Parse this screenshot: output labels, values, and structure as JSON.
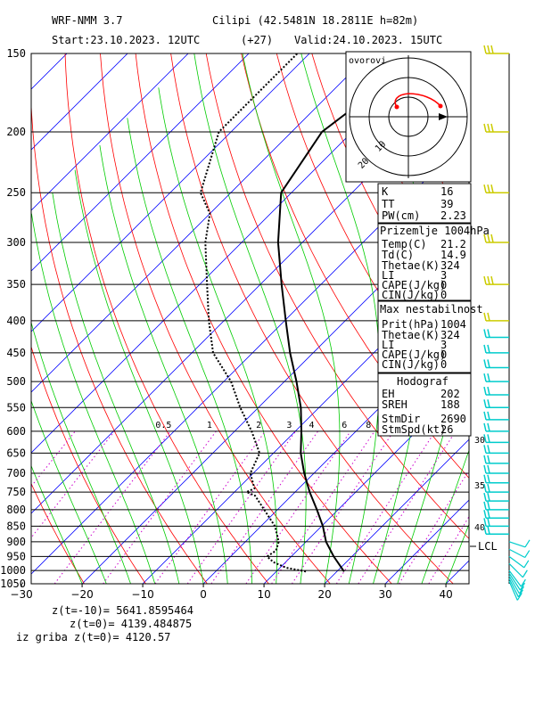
{
  "header": {
    "model": "WRF-NMM 3.7",
    "station": "Cilipi (42.5481N 18.2811E  h=82m)",
    "start": "Start:23.10.2023.   12UTC",
    "offset": "(+27)",
    "valid": "Valid:24.10.2023.   15UTC"
  },
  "colors": {
    "isotherm": "#0000ff",
    "dry_adiabat": "#ff0000",
    "moist_adiabat": "#00cc00",
    "mixing_ratio": "#cc00cc",
    "profile": "#000000",
    "wind_barb": "#cccc00",
    "wind_barb_low": "#00cccc",
    "hodo_curve": "#ff0000"
  },
  "hodograph": {
    "title": "ovorovi",
    "labels": [
      "10",
      "20"
    ]
  },
  "indices": {
    "rows": [
      {
        "k": "K",
        "v": "16"
      },
      {
        "k": "TT",
        "v": "39"
      },
      {
        "k": "PW(cm)",
        "v": "2.23"
      }
    ]
  },
  "surface": {
    "title": "Prizemlje 1004hPa",
    "rows": [
      {
        "k": "Temp(C)",
        "v": "21.2"
      },
      {
        "k": "Td(C)",
        "v": "14.9"
      },
      {
        "k": "Thetae(K)",
        "v": "324"
      },
      {
        "k": "LI",
        "v": "3"
      },
      {
        "k": "CAPE(J/kg)",
        "v": "0"
      },
      {
        "k": "CIN(J/kg)",
        "v": "0"
      }
    ]
  },
  "maxinst": {
    "title": "Max nestabilnost",
    "rows": [
      {
        "k": "Prit(hPa)",
        "v": "1004"
      },
      {
        "k": "Thetae(K)",
        "v": "324"
      },
      {
        "k": "LI",
        "v": "3"
      },
      {
        "k": "CAPE(J/kg)",
        "v": "0"
      },
      {
        "k": "CIN(J/kg)",
        "v": "0"
      }
    ]
  },
  "hodograf": {
    "title": "Hodograf",
    "rows": [
      {
        "k": "EH",
        "v": "202"
      },
      {
        "k": "SREH",
        "v": "188"
      },
      {
        "k": "StmDir",
        "v": "2690"
      },
      {
        "k": "StmSpd(kt)",
        "v": "26"
      }
    ]
  },
  "lcl_label": "LCL",
  "footer": {
    "l1": "z(t=-10)=  5641.8595464",
    "l2": "z(t=0)=   4139.484875",
    "l3": "iz griba  z(t=0)=  4120.57"
  },
  "chart_data": {
    "type": "line",
    "xlabel": "",
    "ylabel": "",
    "x_ticks": [
      "-30",
      "-20",
      "-10",
      "0",
      "10",
      "20",
      "30",
      "40"
    ],
    "x_values": [
      -30,
      -20,
      -10,
      0,
      10,
      20,
      30,
      40
    ],
    "p_ticks": [
      "150",
      "200",
      "250",
      "300",
      "350",
      "400",
      "450",
      "500",
      "550",
      "600",
      "650",
      "700",
      "750",
      "800",
      "850",
      "900",
      "950",
      "1000",
      "1050"
    ],
    "p_values": [
      150,
      200,
      250,
      300,
      350,
      400,
      450,
      500,
      550,
      600,
      650,
      700,
      750,
      800,
      850,
      900,
      950,
      1000,
      1050
    ],
    "xlim": [
      -30,
      42
    ],
    "plim": [
      150,
      1050
    ],
    "mixing_ratio_labels": [
      "0.5",
      "1",
      "2",
      "3",
      "4",
      "6",
      "8"
    ],
    "mixing_ratio_values": [
      0.5,
      1,
      2,
      3,
      4,
      6,
      8
    ],
    "right_labels": [
      "30",
      "35",
      "40"
    ],
    "series": [
      {
        "p": [
          1004,
          950,
          900,
          850,
          800,
          750,
          700,
          650,
          600,
          550,
          500,
          450,
          400,
          350,
          300,
          250,
          200,
          150
        ],
        "t": [
          21.2,
          17.0,
          13.3,
          10.2,
          6.5,
          2.4,
          -1.6,
          -5.5,
          -9.0,
          -13.0,
          -18.0,
          -23.8,
          -29.8,
          -36.5,
          -44.0,
          -51.7,
          -55.0,
          -51.0
        ]
      },
      {
        "p": [
          1004,
          990,
          970,
          950,
          930,
          900,
          850,
          800,
          760,
          750,
          740,
          700,
          650,
          600,
          550,
          500,
          450,
          400,
          350,
          300,
          270,
          250,
          200,
          150
        ],
        "t": [
          14.9,
          11.0,
          8.0,
          6.0,
          6.5,
          5.5,
          2.3,
          -2.2,
          -6.0,
          -8.0,
          -7.3,
          -10.5,
          -12.3,
          -17.2,
          -23.0,
          -28.8,
          -36.5,
          -42.5,
          -48.8,
          -56.0,
          -60.0,
          -65.0,
          -72.0,
          -72.0
        ]
      }
    ]
  }
}
